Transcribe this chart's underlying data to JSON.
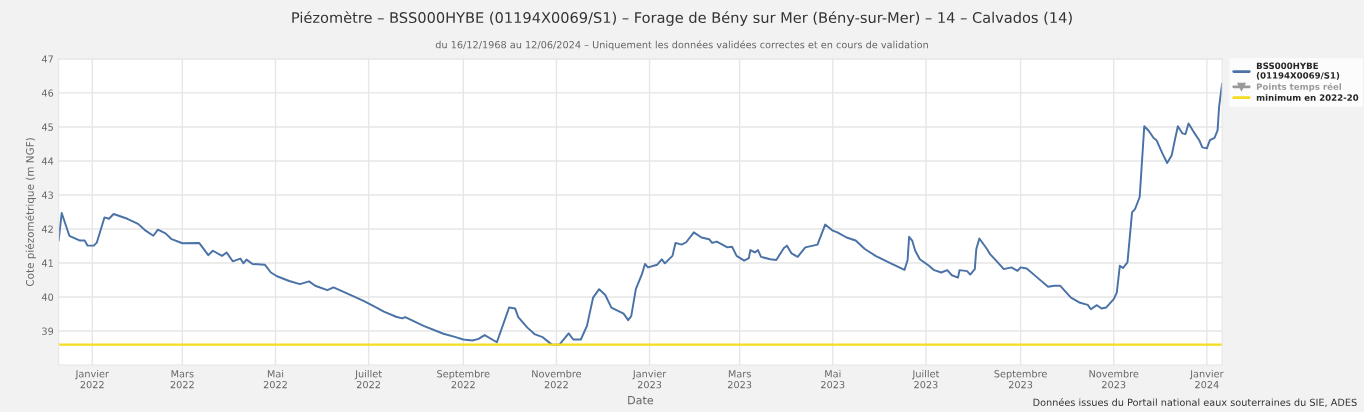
{
  "chart_data": {
    "type": "line",
    "title": "Piézomètre – BSS000HYBE (01194X0069/S1) – Forage de Bény sur Mer (Bény-sur-Mer) – 14 – Calvados (14)",
    "subtitle": "du 16/12/1968 au 12/06/2024 – Uniquement les données validées correctes et en cours de validation",
    "xlabel": "Date",
    "ylabel": "Cote piézométrique (m NGF)",
    "annotations": [
      "Données issues du Portail national eaux souterraines du SIE, ADES"
    ],
    "xlim": [
      "2021-12-10",
      "2024-01-11"
    ],
    "xticks": [
      {
        "value": "2022-01-01",
        "label": "Janvier\n2022"
      },
      {
        "value": "2022-03-01",
        "label": "Mars\n2022"
      },
      {
        "value": "2022-05-01",
        "label": "Mai\n2022"
      },
      {
        "value": "2022-07-01",
        "label": "Juillet\n2022"
      },
      {
        "value": "2022-09-01",
        "label": "Septembre\n2022"
      },
      {
        "value": "2022-11-01",
        "label": "Novembre\n2022"
      },
      {
        "value": "2023-01-01",
        "label": "Janvier\n2023"
      },
      {
        "value": "2023-03-01",
        "label": "Mars\n2023"
      },
      {
        "value": "2023-05-01",
        "label": "Mai\n2023"
      },
      {
        "value": "2023-07-01",
        "label": "Juillet\n2023"
      },
      {
        "value": "2023-09-01",
        "label": "Septembre\n2023"
      },
      {
        "value": "2023-11-01",
        "label": "Novembre\n2023"
      },
      {
        "value": "2024-01-01",
        "label": "Janvier\n2024"
      }
    ],
    "ylim": [
      38,
      47
    ],
    "yticks": [
      39,
      40,
      41,
      42,
      43,
      44,
      45,
      46,
      47
    ],
    "grid": true,
    "legend": "top right",
    "marker": "none",
    "line_style": "solid",
    "series": [
      {
        "name": "BSS000HYBE\n(01194X0069/S1)",
        "color": "#4a72a6",
        "x": [
          "2021-12-10",
          "2021-12-12",
          "2021-12-17",
          "2021-12-24",
          "2021-12-27",
          "2021-12-29",
          "2022-01-02",
          "2022-01-04",
          "2022-01-09",
          "2022-01-12",
          "2022-01-15",
          "2022-01-24",
          "2022-01-31",
          "2022-02-05",
          "2022-02-10",
          "2022-02-13",
          "2022-02-18",
          "2022-02-22",
          "2022-03-01",
          "2022-03-12",
          "2022-03-18",
          "2022-03-21",
          "2022-03-27",
          "2022-03-30",
          "2022-04-03",
          "2022-04-08",
          "2022-04-10",
          "2022-04-12",
          "2022-04-16",
          "2022-04-24",
          "2022-04-28",
          "2022-05-02",
          "2022-05-10",
          "2022-05-17",
          "2022-05-23",
          "2022-05-27",
          "2022-06-04",
          "2022-06-08",
          "2022-06-19",
          "2022-06-28",
          "2022-07-04",
          "2022-07-11",
          "2022-07-19",
          "2022-07-23",
          "2022-07-25",
          "2022-08-06",
          "2022-08-19",
          "2022-08-27",
          "2022-09-01",
          "2022-09-07",
          "2022-09-11",
          "2022-09-15",
          "2022-09-23",
          "2022-10-01",
          "2022-10-05",
          "2022-10-07",
          "2022-10-13",
          "2022-10-18",
          "2022-10-23",
          "2022-10-29",
          "2022-11-03",
          "2022-11-09",
          "2022-11-12",
          "2022-11-17",
          "2022-11-21",
          "2022-11-25",
          "2022-11-29",
          "2022-12-03",
          "2022-12-07",
          "2022-12-15",
          "2022-12-18",
          "2022-12-20",
          "2022-12-23",
          "2022-12-27",
          "2022-12-29",
          "2022-12-31",
          "2023-01-06",
          "2023-01-09",
          "2023-01-11",
          "2023-01-16",
          "2023-01-18",
          "2023-01-22",
          "2023-01-25",
          "2023-01-30",
          "2023-02-04",
          "2023-02-09",
          "2023-02-11",
          "2023-02-14",
          "2023-02-21",
          "2023-02-24",
          "2023-02-27",
          "2023-03-04",
          "2023-03-07",
          "2023-03-08",
          "2023-03-11",
          "2023-03-13",
          "2023-03-15",
          "2023-03-21",
          "2023-03-25",
          "2023-03-30",
          "2023-04-01",
          "2023-04-04",
          "2023-04-08",
          "2023-04-13",
          "2023-04-21",
          "2023-04-26",
          "2023-05-01",
          "2023-05-04",
          "2023-05-10",
          "2023-05-16",
          "2023-05-22",
          "2023-05-29",
          "2023-06-08",
          "2023-06-17",
          "2023-06-19",
          "2023-06-20",
          "2023-06-22",
          "2023-06-24",
          "2023-06-27",
          "2023-07-03",
          "2023-07-06",
          "2023-07-11",
          "2023-07-15",
          "2023-07-18",
          "2023-07-22",
          "2023-07-23",
          "2023-07-28",
          "2023-07-30",
          "2023-08-02",
          "2023-08-03",
          "2023-08-05",
          "2023-08-10",
          "2023-08-12",
          "2023-08-16",
          "2023-08-21",
          "2023-08-26",
          "2023-08-30",
          "2023-09-01",
          "2023-09-05",
          "2023-09-12",
          "2023-09-19",
          "2023-09-23",
          "2023-09-27",
          "2023-10-01",
          "2023-10-04",
          "2023-10-10",
          "2023-10-15",
          "2023-10-17",
          "2023-10-21",
          "2023-10-24",
          "2023-10-27",
          "2023-11-01",
          "2023-11-03",
          "2023-11-05",
          "2023-11-07",
          "2023-11-10",
          "2023-11-13",
          "2023-11-15",
          "2023-11-18",
          "2023-11-21",
          "2023-11-24",
          "2023-11-27",
          "2023-11-29",
          "2023-12-03",
          "2023-12-06",
          "2023-12-09",
          "2023-12-11",
          "2023-12-13",
          "2023-12-16",
          "2023-12-18",
          "2023-12-20",
          "2023-12-24",
          "2023-12-27",
          "2023-12-29",
          "2024-01-01",
          "2024-01-03",
          "2024-01-06",
          "2024-01-08",
          "2024-01-09",
          "2024-01-11"
        ],
        "values": [
          41.66,
          42.47,
          41.8,
          41.66,
          41.66,
          41.51,
          41.51,
          41.6,
          42.34,
          42.3,
          42.44,
          42.3,
          42.15,
          41.95,
          41.8,
          41.98,
          41.87,
          41.7,
          41.58,
          41.59,
          41.23,
          41.36,
          41.21,
          41.31,
          41.05,
          41.13,
          40.99,
          41.1,
          40.97,
          40.95,
          40.72,
          40.61,
          40.47,
          40.38,
          40.46,
          40.33,
          40.2,
          40.28,
          40.06,
          39.88,
          39.74,
          39.57,
          39.42,
          39.37,
          39.41,
          39.15,
          38.92,
          38.82,
          38.75,
          38.72,
          38.77,
          38.88,
          38.67,
          39.69,
          39.66,
          39.41,
          39.1,
          38.9,
          38.82,
          38.6,
          38.6,
          38.93,
          38.75,
          38.75,
          39.15,
          39.98,
          40.23,
          40.06,
          39.69,
          39.51,
          39.32,
          39.44,
          40.23,
          40.67,
          40.97,
          40.87,
          40.95,
          41.11,
          40.99,
          41.21,
          41.59,
          41.54,
          41.61,
          41.9,
          41.75,
          41.7,
          41.59,
          41.63,
          41.46,
          41.48,
          41.21,
          41.07,
          41.14,
          41.38,
          41.31,
          41.38,
          41.18,
          41.11,
          41.09,
          41.44,
          41.51,
          41.28,
          41.18,
          41.46,
          41.54,
          42.13,
          41.95,
          41.9,
          41.75,
          41.66,
          41.41,
          41.21,
          40.99,
          40.8,
          41.09,
          41.77,
          41.66,
          41.36,
          41.11,
          40.92,
          40.8,
          40.72,
          40.79,
          40.64,
          40.57,
          40.79,
          40.76,
          40.66,
          40.82,
          41.41,
          41.72,
          41.41,
          41.26,
          41.07,
          40.82,
          40.87,
          40.77,
          40.87,
          40.84,
          40.57,
          40.3,
          40.33,
          40.33,
          40.13,
          39.98,
          39.83,
          39.77,
          39.64,
          39.76,
          39.66,
          39.69,
          39.94,
          40.13,
          40.92,
          40.85,
          41.02,
          42.49,
          42.59,
          42.94,
          45.02,
          44.88,
          44.68,
          44.61,
          44.21,
          43.94,
          44.17,
          44.61,
          45.02,
          44.81,
          44.79,
          45.1,
          44.81,
          44.61,
          44.4,
          44.37,
          44.61,
          44.68,
          44.9,
          45.59,
          46.28
        ]
      },
      {
        "name": "Points temps réel",
        "type": "scatter",
        "color": "#999999",
        "marker": "triangle"
      }
    ],
    "ref_lines": [
      {
        "axis": "y",
        "value": 38.6,
        "label": "minimum en 2022-20",
        "color": "#f5dc1e",
        "line_style": "solid"
      }
    ]
  }
}
